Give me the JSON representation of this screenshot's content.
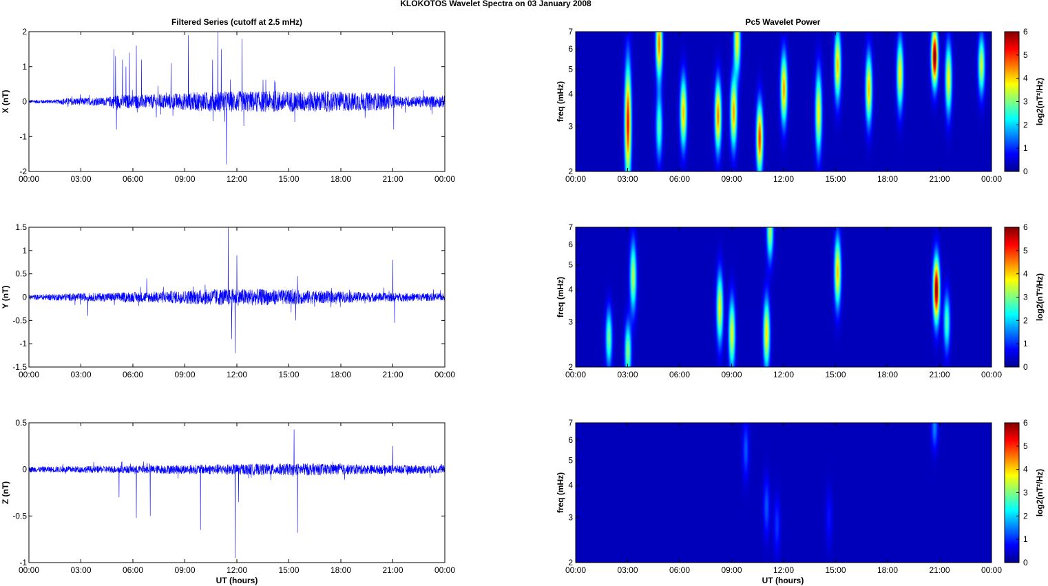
{
  "figure": {
    "title": "KLOKOTOS Wavelet Spectra on 03 January   2008",
    "left_title": "Filtered Series (cutoff at 2.5 mHz)",
    "right_title": "Pc5 Wavelet Power",
    "xlabel": "UT (hours)"
  },
  "chart_data": [
    {
      "type": "line",
      "name": "X component filtered series",
      "ylabel": "X (nT)",
      "xlim": [
        0,
        24
      ],
      "ylim": [
        -2,
        2
      ],
      "xticks": [
        "00:00",
        "03:00",
        "06:00",
        "09:00",
        "12:00",
        "15:00",
        "18:00",
        "21:00",
        "00:00"
      ],
      "yticks": [
        -2,
        -1,
        0,
        1,
        2
      ],
      "line_color": "#0000ff",
      "noise_profile": [
        [
          0,
          0.05
        ],
        [
          1.8,
          0.06
        ],
        [
          2,
          0.1
        ],
        [
          4.6,
          0.12
        ],
        [
          4.8,
          0.2
        ],
        [
          7,
          0.2
        ],
        [
          9,
          0.25
        ],
        [
          11,
          0.3
        ],
        [
          13,
          0.3
        ],
        [
          17,
          0.3
        ],
        [
          20.5,
          0.25
        ],
        [
          21.3,
          0.15
        ],
        [
          24,
          0.18
        ]
      ],
      "spikes": [
        [
          4.9,
          1.5
        ],
        [
          5.0,
          1.3
        ],
        [
          5.05,
          -0.8
        ],
        [
          5.4,
          1.2
        ],
        [
          5.6,
          1.0
        ],
        [
          5.8,
          1.4
        ],
        [
          6.2,
          1.6
        ],
        [
          6.5,
          1.2
        ],
        [
          8.2,
          1.1
        ],
        [
          9.2,
          1.9
        ],
        [
          10.6,
          1.2
        ],
        [
          10.9,
          2.0
        ],
        [
          11.1,
          1.5
        ],
        [
          11.4,
          -1.8
        ],
        [
          12.3,
          1.8
        ],
        [
          12.4,
          -0.7
        ],
        [
          21.1,
          1.0
        ],
        [
          21.05,
          -0.8
        ]
      ]
    },
    {
      "type": "line",
      "name": "Y component filtered series",
      "ylabel": "Y (nT)",
      "xlim": [
        0,
        24
      ],
      "ylim": [
        -1.5,
        1.5
      ],
      "xticks": [
        "00:00",
        "03:00",
        "06:00",
        "09:00",
        "12:00",
        "15:00",
        "18:00",
        "21:00",
        "00:00"
      ],
      "yticks": [
        -1.5,
        -1,
        -0.5,
        0,
        0.5,
        1,
        1.5
      ],
      "line_color": "#0000ff",
      "noise_profile": [
        [
          0,
          0.05
        ],
        [
          2,
          0.08
        ],
        [
          4,
          0.09
        ],
        [
          8,
          0.13
        ],
        [
          11,
          0.18
        ],
        [
          13,
          0.18
        ],
        [
          15,
          0.16
        ],
        [
          20,
          0.1
        ],
        [
          24,
          0.08
        ]
      ],
      "spikes": [
        [
          3.4,
          -0.4
        ],
        [
          6.8,
          0.4
        ],
        [
          11.5,
          1.5
        ],
        [
          11.7,
          -0.9
        ],
        [
          11.9,
          -1.2
        ],
        [
          12.0,
          0.9
        ],
        [
          15.5,
          0.45
        ],
        [
          15.4,
          -0.5
        ],
        [
          21.0,
          0.8
        ],
        [
          21.1,
          -0.55
        ]
      ]
    },
    {
      "type": "line",
      "name": "Z component filtered series",
      "ylabel": "Z (nT)",
      "xlim": [
        0,
        24
      ],
      "ylim": [
        -1,
        0.5
      ],
      "xticks": [
        "00:00",
        "03:00",
        "06:00",
        "09:00",
        "12:00",
        "15:00",
        "18:00",
        "21:00",
        "00:00"
      ],
      "yticks": [
        -1,
        -0.5,
        0,
        0.5
      ],
      "line_color": "#0000ff",
      "noise_profile": [
        [
          0,
          0.03
        ],
        [
          5,
          0.04
        ],
        [
          9,
          0.05
        ],
        [
          13,
          0.06
        ],
        [
          16,
          0.065
        ],
        [
          20,
          0.05
        ],
        [
          24,
          0.045
        ]
      ],
      "spikes": [
        [
          5.2,
          -0.3
        ],
        [
          6.2,
          -0.52
        ],
        [
          7.0,
          -0.5
        ],
        [
          9.9,
          -0.65
        ],
        [
          11.9,
          -0.95
        ],
        [
          12.1,
          -0.35
        ],
        [
          15.3,
          0.43
        ],
        [
          15.5,
          -0.68
        ],
        [
          21.0,
          0.25
        ]
      ]
    },
    {
      "type": "heatmap",
      "name": "X wavelet power",
      "ylabel": "freq (mHz)",
      "xlim": [
        0,
        24
      ],
      "ylim": [
        2,
        7
      ],
      "y_scale": "log",
      "xticks": [
        "00:00",
        "03:00",
        "06:00",
        "09:00",
        "12:00",
        "15:00",
        "18:00",
        "21:00",
        "00:00"
      ],
      "yticks": [
        2,
        3,
        4,
        5,
        6,
        7
      ],
      "colorbar": {
        "label": "log2(nT²/Hz)",
        "range": [
          0,
          6
        ],
        "ticks": [
          0,
          1,
          2,
          3,
          4,
          5,
          6
        ],
        "colormap": "jet"
      },
      "blobs": [
        [
          3.0,
          3.1,
          4.9,
          0.5
        ],
        [
          4.8,
          3.0,
          2.4,
          0.28
        ],
        [
          4.8,
          6.3,
          4.2,
          0.3
        ],
        [
          6.2,
          3.4,
          3.8,
          0.3
        ],
        [
          8.2,
          3.3,
          4.2,
          0.3
        ],
        [
          9.1,
          3.4,
          4.0,
          0.3
        ],
        [
          9.3,
          6.5,
          3.5,
          0.3
        ],
        [
          10.6,
          2.7,
          4.6,
          0.3
        ],
        [
          12.0,
          4.2,
          4.0,
          0.3
        ],
        [
          14.0,
          3.4,
          3.5,
          0.35
        ],
        [
          15.1,
          5.2,
          3.8,
          0.3
        ],
        [
          16.9,
          4.2,
          3.8,
          0.3
        ],
        [
          18.7,
          4.8,
          3.5,
          0.3
        ],
        [
          20.7,
          5.6,
          5.8,
          0.25
        ],
        [
          21.5,
          4.6,
          3.5,
          0.3
        ],
        [
          23.4,
          5.2,
          3.2,
          0.25
        ]
      ]
    },
    {
      "type": "heatmap",
      "name": "Y wavelet power",
      "ylabel": "freq (mHz)",
      "xlim": [
        0,
        24
      ],
      "ylim": [
        2,
        7
      ],
      "y_scale": "log",
      "xticks": [
        "00:00",
        "03:00",
        "06:00",
        "09:00",
        "12:00",
        "15:00",
        "18:00",
        "21:00",
        "00:00"
      ],
      "yticks": [
        2,
        3,
        4,
        5,
        6,
        7
      ],
      "colorbar": {
        "label": "log2(nT²/Hz)",
        "range": [
          0,
          6
        ],
        "ticks": [
          0,
          1,
          2,
          3,
          4,
          5,
          6
        ],
        "colormap": "jet"
      },
      "blobs": [
        [
          1.9,
          2.6,
          2.6,
          0.25
        ],
        [
          3.0,
          2.3,
          2.8,
          0.25
        ],
        [
          3.3,
          4.5,
          3.0,
          0.3
        ],
        [
          8.3,
          3.4,
          3.4,
          0.3
        ],
        [
          9.0,
          2.7,
          3.3,
          0.3
        ],
        [
          11.0,
          2.7,
          3.6,
          0.3
        ],
        [
          11.2,
          6.8,
          3.0,
          0.25
        ],
        [
          15.1,
          4.7,
          3.8,
          0.3
        ],
        [
          20.8,
          4.0,
          5.7,
          0.28
        ],
        [
          21.4,
          3.0,
          2.4,
          0.25
        ]
      ]
    },
    {
      "type": "heatmap",
      "name": "Z wavelet power",
      "ylabel": "freq (mHz)",
      "xlim": [
        0,
        24
      ],
      "ylim": [
        2,
        7
      ],
      "y_scale": "log",
      "xticks": [
        "00:00",
        "03:00",
        "06:00",
        "09:00",
        "12:00",
        "15:00",
        "18:00",
        "21:00",
        "00:00"
      ],
      "yticks": [
        2,
        3,
        4,
        5,
        6,
        7
      ],
      "colorbar": {
        "label": "log2(nT²/Hz)",
        "range": [
          0,
          6
        ],
        "ticks": [
          0,
          1,
          2,
          3,
          4,
          5,
          6
        ],
        "colormap": "jet"
      },
      "blobs": [
        [
          9.8,
          5.5,
          0.9,
          0.25
        ],
        [
          11.0,
          3.3,
          0.9,
          0.25
        ],
        [
          11.6,
          2.8,
          0.7,
          0.25
        ],
        [
          14.6,
          3.0,
          0.5,
          0.25
        ],
        [
          20.7,
          6.8,
          1.2,
          0.2
        ]
      ]
    }
  ]
}
